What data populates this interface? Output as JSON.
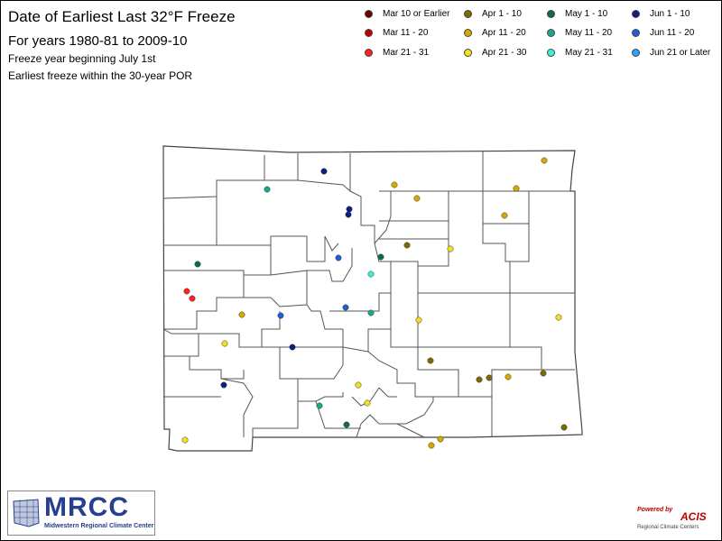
{
  "header": {
    "title": "Date of Earliest Last 32°F Freeze",
    "subtitle": "For years 1980-81 to 2009-10",
    "note1": "Freeze year beginning July 1st",
    "note2": "Earliest freeze within the 30-year POR"
  },
  "legend": [
    {
      "label": "Mar 10 or Earlier",
      "color": "#6b0000"
    },
    {
      "label": "Apr 1 - 10",
      "color": "#7a6a00"
    },
    {
      "label": "May 1 - 10",
      "color": "#0b6b4a"
    },
    {
      "label": "Jun 1 - 10",
      "color": "#0a1e86"
    },
    {
      "label": "Mar 11 - 20",
      "color": "#c00000"
    },
    {
      "label": "Apr 11 - 20",
      "color": "#d4aa00"
    },
    {
      "label": "May 11 - 20",
      "color": "#1aa98a"
    },
    {
      "label": "Jun 11 - 20",
      "color": "#1e5fd4"
    },
    {
      "label": "Mar 21 - 31",
      "color": "#ff2020"
    },
    {
      "label": "Apr 21 - 30",
      "color": "#f3e020"
    },
    {
      "label": "May 21 - 31",
      "color": "#3ff0d8"
    },
    {
      "label": "Jun 21 or Later",
      "color": "#2ea0ff"
    }
  ],
  "logos": {
    "mrcc_name": "MRCC",
    "mrcc_sub": "Midwestern Regional Climate Center",
    "acis_powered": "Powered by",
    "acis_name": "ACIS",
    "acis_sub": "Regional Climate Centers"
  }
}
